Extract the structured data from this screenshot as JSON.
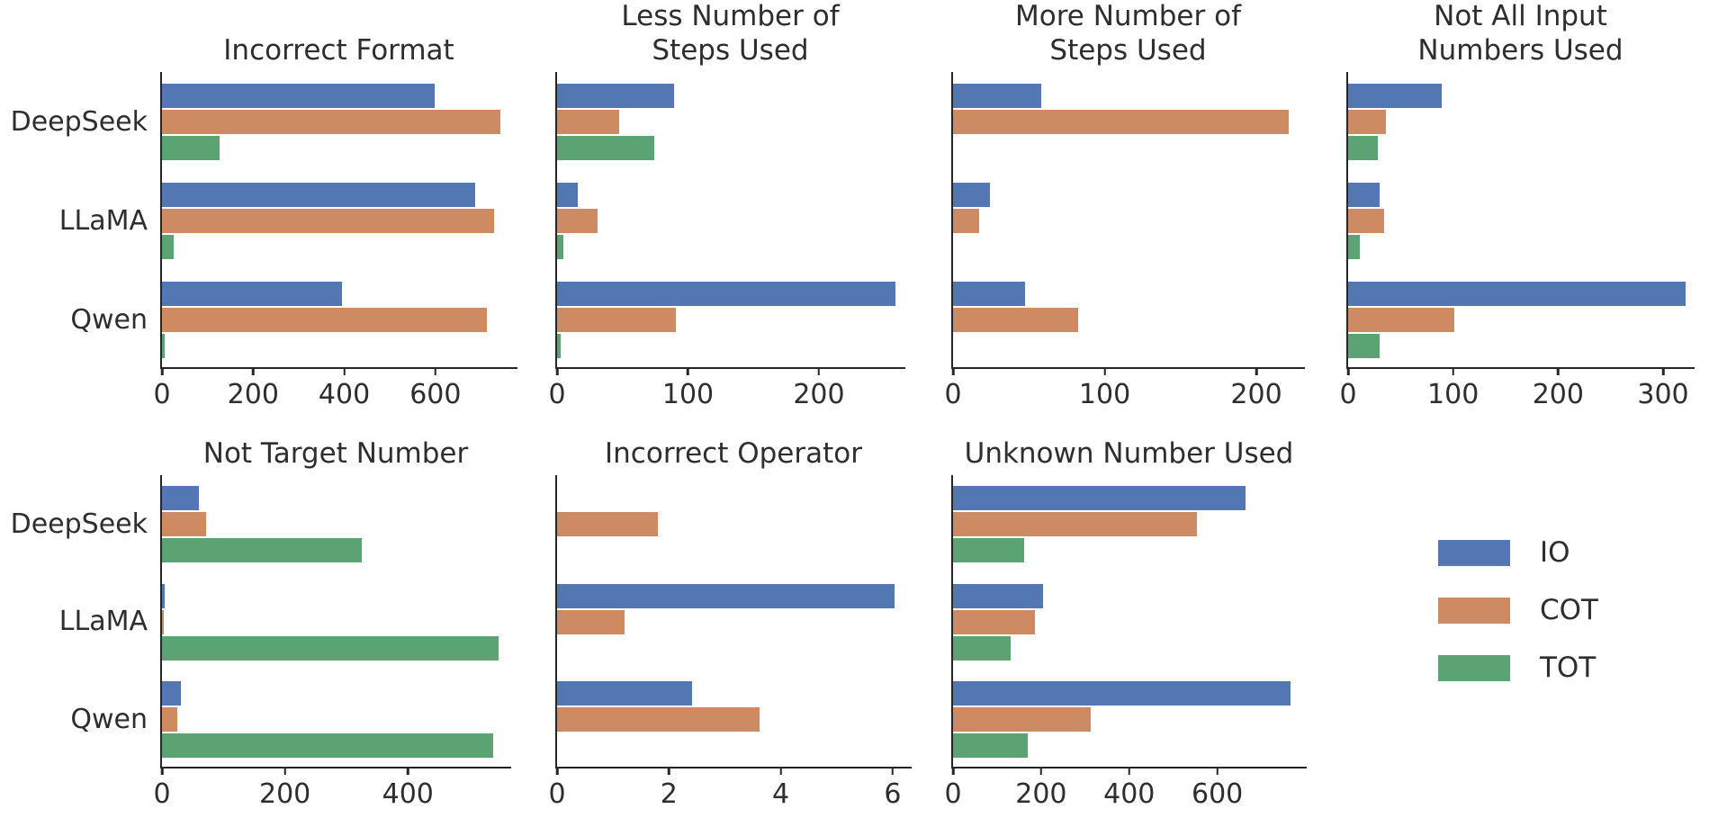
{
  "figure_title": "",
  "legend": {
    "position": "bottom-right",
    "items": [
      {
        "label": "IO",
        "color": "#5277B2"
      },
      {
        "label": "COT",
        "color": "#CE8A62"
      },
      {
        "label": "TOT",
        "color": "#5CA373"
      }
    ]
  },
  "style": {
    "spine_color": "#262626",
    "text_color": "#2e2e2e",
    "background": "#ffffff"
  },
  "chart_data": [
    {
      "type": "bar",
      "orientation": "horizontal",
      "title": "Incorrect Format",
      "categories": [
        "DeepSeek",
        "LLaMA",
        "Qwen"
      ],
      "series": [
        {
          "name": "IO",
          "values": [
            595,
            684,
            393
          ]
        },
        {
          "name": "COT",
          "values": [
            738,
            725,
            709
          ]
        },
        {
          "name": "TOT",
          "values": [
            125,
            25,
            5
          ]
        }
      ],
      "xticks": [
        0,
        200,
        400,
        600
      ],
      "xlim": [
        0,
        780
      ],
      "grid": false,
      "show_category_labels": true
    },
    {
      "type": "bar",
      "orientation": "horizontal",
      "title": "Less Number of\nSteps Used",
      "categories": [
        "DeepSeek",
        "LLaMA",
        "Qwen"
      ],
      "series": [
        {
          "name": "IO",
          "values": [
            89,
            16,
            257
          ]
        },
        {
          "name": "COT",
          "values": [
            47,
            31,
            90
          ]
        },
        {
          "name": "TOT",
          "values": [
            74,
            5,
            3
          ]
        }
      ],
      "xticks": [
        0,
        100,
        200
      ],
      "xlim": [
        0,
        266
      ],
      "grid": false,
      "show_category_labels": false
    },
    {
      "type": "bar",
      "orientation": "horizontal",
      "title": "More Number of\nSteps Used",
      "categories": [
        "DeepSeek",
        "LLaMA",
        "Qwen"
      ],
      "series": [
        {
          "name": "IO",
          "values": [
            58,
            24,
            47
          ]
        },
        {
          "name": "COT",
          "values": [
            220,
            17,
            82
          ]
        },
        {
          "name": "TOT",
          "values": [
            0,
            0,
            0
          ]
        }
      ],
      "xticks": [
        0,
        100,
        200
      ],
      "xlim": [
        0,
        232
      ],
      "grid": false,
      "show_category_labels": false
    },
    {
      "type": "bar",
      "orientation": "horizontal",
      "title": "Not All Input\nNumbers Used",
      "categories": [
        "DeepSeek",
        "LLaMA",
        "Qwen"
      ],
      "series": [
        {
          "name": "IO",
          "values": [
            89,
            30,
            320
          ]
        },
        {
          "name": "COT",
          "values": [
            36,
            34,
            101
          ]
        },
        {
          "name": "TOT",
          "values": [
            28,
            11,
            30
          ]
        }
      ],
      "xticks": [
        0,
        100,
        200,
        300
      ],
      "xlim": [
        0,
        330
      ],
      "grid": false,
      "show_category_labels": false
    },
    {
      "type": "bar",
      "orientation": "horizontal",
      "title": "Not Target Number",
      "categories": [
        "DeepSeek",
        "LLaMA",
        "Qwen"
      ],
      "series": [
        {
          "name": "IO",
          "values": [
            60,
            5,
            31
          ]
        },
        {
          "name": "COT",
          "values": [
            72,
            3,
            25
          ]
        },
        {
          "name": "TOT",
          "values": [
            324,
            545,
            536
          ]
        }
      ],
      "xticks": [
        0,
        200,
        400
      ],
      "xlim": [
        0,
        568
      ],
      "grid": false,
      "show_category_labels": true
    },
    {
      "type": "bar",
      "orientation": "horizontal",
      "title": "Incorrect Operator",
      "categories": [
        "DeepSeek",
        "LLaMA",
        "Qwen"
      ],
      "series": [
        {
          "name": "IO",
          "values": [
            0,
            6,
            2.4
          ]
        },
        {
          "name": "COT",
          "values": [
            1.8,
            1.2,
            3.6
          ]
        },
        {
          "name": "TOT",
          "values": [
            0,
            0,
            0
          ]
        }
      ],
      "xticks": [
        0,
        2,
        4,
        6
      ],
      "xlim": [
        0,
        6.34
      ],
      "grid": false,
      "show_category_labels": false
    },
    {
      "type": "bar",
      "orientation": "horizontal",
      "title": "Unknown Number Used",
      "categories": [
        "DeepSeek",
        "LLaMA",
        "Qwen"
      ],
      "series": [
        {
          "name": "IO",
          "values": [
            660,
            203,
            763
          ]
        },
        {
          "name": "COT",
          "values": [
            550,
            186,
            312
          ]
        },
        {
          "name": "TOT",
          "values": [
            160,
            130,
            168
          ]
        }
      ],
      "xticks": [
        0,
        200,
        400,
        600
      ],
      "xlim": [
        0,
        803
      ],
      "grid": false,
      "show_category_labels": false
    }
  ]
}
